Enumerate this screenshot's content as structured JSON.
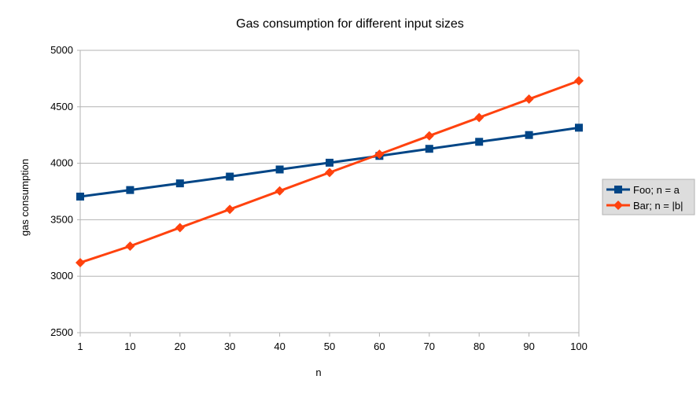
{
  "chart_data": {
    "type": "line",
    "title": "Gas consumption for different input sizes",
    "xlabel": "n",
    "ylabel": "gas consumption",
    "x": [
      1,
      10,
      20,
      30,
      40,
      50,
      60,
      70,
      80,
      90,
      100
    ],
    "ylim": [
      2500,
      5000
    ],
    "yticks": [
      2500,
      3000,
      3500,
      4000,
      4500,
      5000
    ],
    "grid": true,
    "legend_position": "right",
    "series": [
      {
        "name": "Foo; n = a",
        "color": "#004586",
        "marker": "square",
        "values": [
          3705,
          3763,
          3822,
          3882,
          3945,
          4005,
          4065,
          4128,
          4190,
          4250,
          4315
        ]
      },
      {
        "name": "Bar; n = |b|",
        "color": "#ff420e",
        "marker": "diamond",
        "values": [
          3120,
          3266,
          3430,
          3592,
          3755,
          3918,
          4080,
          4243,
          4405,
          4568,
          4730
        ]
      }
    ]
  }
}
